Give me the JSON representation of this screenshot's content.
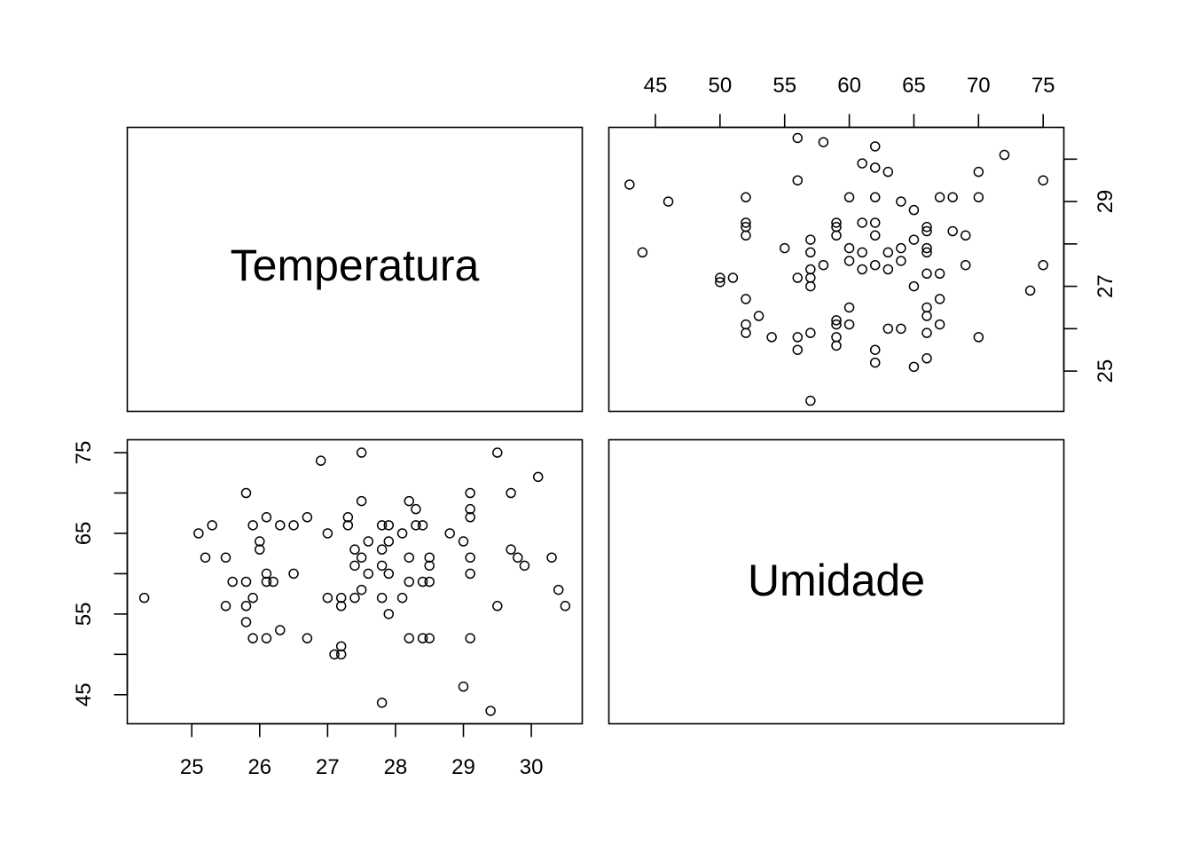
{
  "chart_data": {
    "type": "scatter",
    "variables": [
      "Temperatura",
      "Umidade"
    ],
    "axes": {
      "temperatura": {
        "lim": [
          24.05,
          30.75
        ],
        "ticks": [
          25,
          26,
          27,
          28,
          29,
          30
        ]
      },
      "temperatura_right": {
        "ticks": [
          25,
          27,
          29
        ],
        "minor_ticks": [
          26,
          28,
          30
        ]
      },
      "umidade": {
        "lim": [
          41.4,
          76.6
        ],
        "ticks": [
          45,
          50,
          55,
          60,
          65,
          70,
          75
        ]
      },
      "umidade_left": {
        "ticks": [
          45,
          55,
          65,
          75
        ],
        "minor_ticks": [
          50,
          60,
          70
        ]
      }
    },
    "points": [
      [
        24.3,
        57
      ],
      [
        25.1,
        65
      ],
      [
        25.2,
        62
      ],
      [
        25.3,
        66
      ],
      [
        25.5,
        62
      ],
      [
        25.5,
        56
      ],
      [
        25.6,
        59
      ],
      [
        25.8,
        70
      ],
      [
        25.8,
        59
      ],
      [
        25.8,
        56
      ],
      [
        25.8,
        54
      ],
      [
        25.9,
        66
      ],
      [
        25.9,
        57
      ],
      [
        25.9,
        52
      ],
      [
        26.0,
        64
      ],
      [
        26.0,
        63
      ],
      [
        26.1,
        67
      ],
      [
        26.1,
        60
      ],
      [
        26.1,
        59
      ],
      [
        26.1,
        52
      ],
      [
        26.2,
        59
      ],
      [
        26.3,
        66
      ],
      [
        26.3,
        53
      ],
      [
        26.5,
        66
      ],
      [
        26.5,
        60
      ],
      [
        26.7,
        67
      ],
      [
        26.7,
        52
      ],
      [
        26.9,
        74
      ],
      [
        27.0,
        65
      ],
      [
        27.0,
        57
      ],
      [
        27.1,
        50
      ],
      [
        27.2,
        57
      ],
      [
        27.2,
        56
      ],
      [
        27.2,
        51
      ],
      [
        27.2,
        50
      ],
      [
        27.3,
        67
      ],
      [
        27.3,
        66
      ],
      [
        27.4,
        63
      ],
      [
        27.4,
        61
      ],
      [
        27.4,
        57
      ],
      [
        27.5,
        75
      ],
      [
        27.5,
        69
      ],
      [
        27.5,
        62
      ],
      [
        27.5,
        58
      ],
      [
        27.6,
        64
      ],
      [
        27.6,
        60
      ],
      [
        27.8,
        66
      ],
      [
        27.8,
        63
      ],
      [
        27.8,
        61
      ],
      [
        27.8,
        57
      ],
      [
        27.8,
        44
      ],
      [
        27.9,
        66
      ],
      [
        27.9,
        64
      ],
      [
        27.9,
        60
      ],
      [
        27.9,
        55
      ],
      [
        28.1,
        65
      ],
      [
        28.1,
        57
      ],
      [
        28.2,
        69
      ],
      [
        28.2,
        62
      ],
      [
        28.2,
        59
      ],
      [
        28.2,
        52
      ],
      [
        28.3,
        68
      ],
      [
        28.3,
        66
      ],
      [
        28.4,
        66
      ],
      [
        28.4,
        59
      ],
      [
        28.4,
        52
      ],
      [
        28.5,
        62
      ],
      [
        28.5,
        61
      ],
      [
        28.5,
        59
      ],
      [
        28.5,
        52
      ],
      [
        28.8,
        65
      ],
      [
        29.0,
        64
      ],
      [
        29.0,
        46
      ],
      [
        29.1,
        70
      ],
      [
        29.1,
        68
      ],
      [
        29.1,
        67
      ],
      [
        29.1,
        62
      ],
      [
        29.1,
        60
      ],
      [
        29.1,
        52
      ],
      [
        29.4,
        43
      ],
      [
        29.5,
        75
      ],
      [
        29.5,
        56
      ],
      [
        29.7,
        70
      ],
      [
        29.7,
        63
      ],
      [
        29.8,
        62
      ],
      [
        29.9,
        61
      ],
      [
        30.1,
        72
      ],
      [
        30.3,
        62
      ],
      [
        30.4,
        58
      ],
      [
        30.5,
        56
      ]
    ]
  }
}
